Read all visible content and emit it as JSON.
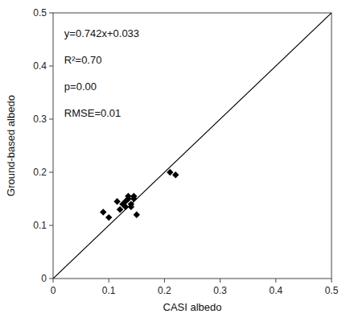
{
  "chart_data": {
    "type": "scatter",
    "xlabel": "CASI albedo",
    "ylabel": "Ground-based albedo",
    "xlim": [
      0,
      0.5
    ],
    "ylim": [
      0,
      0.5
    ],
    "xticks": [
      0,
      0.1,
      0.2,
      0.3,
      0.4,
      0.5
    ],
    "yticks": [
      0,
      0.1,
      0.2,
      0.3,
      0.4,
      0.5
    ],
    "grid": false,
    "annotations": [
      "y=0.742x+0.033",
      "R²=0.70",
      "p=0.00",
      "RMSE=0.01"
    ],
    "series": [
      {
        "type": "scatter",
        "marker": "diamond",
        "color": "#000000",
        "x": [
          0.09,
          0.1,
          0.115,
          0.12,
          0.125,
          0.13,
          0.13,
          0.135,
          0.135,
          0.14,
          0.14,
          0.145,
          0.145,
          0.15,
          0.21,
          0.22
        ],
        "values": [
          0.125,
          0.115,
          0.145,
          0.13,
          0.14,
          0.135,
          0.145,
          0.15,
          0.155,
          0.135,
          0.14,
          0.15,
          0.155,
          0.12,
          0.2,
          0.195
        ]
      },
      {
        "type": "line",
        "color": "#000000",
        "x": [
          0,
          0.5
        ],
        "values": [
          0,
          0.5
        ]
      }
    ]
  }
}
